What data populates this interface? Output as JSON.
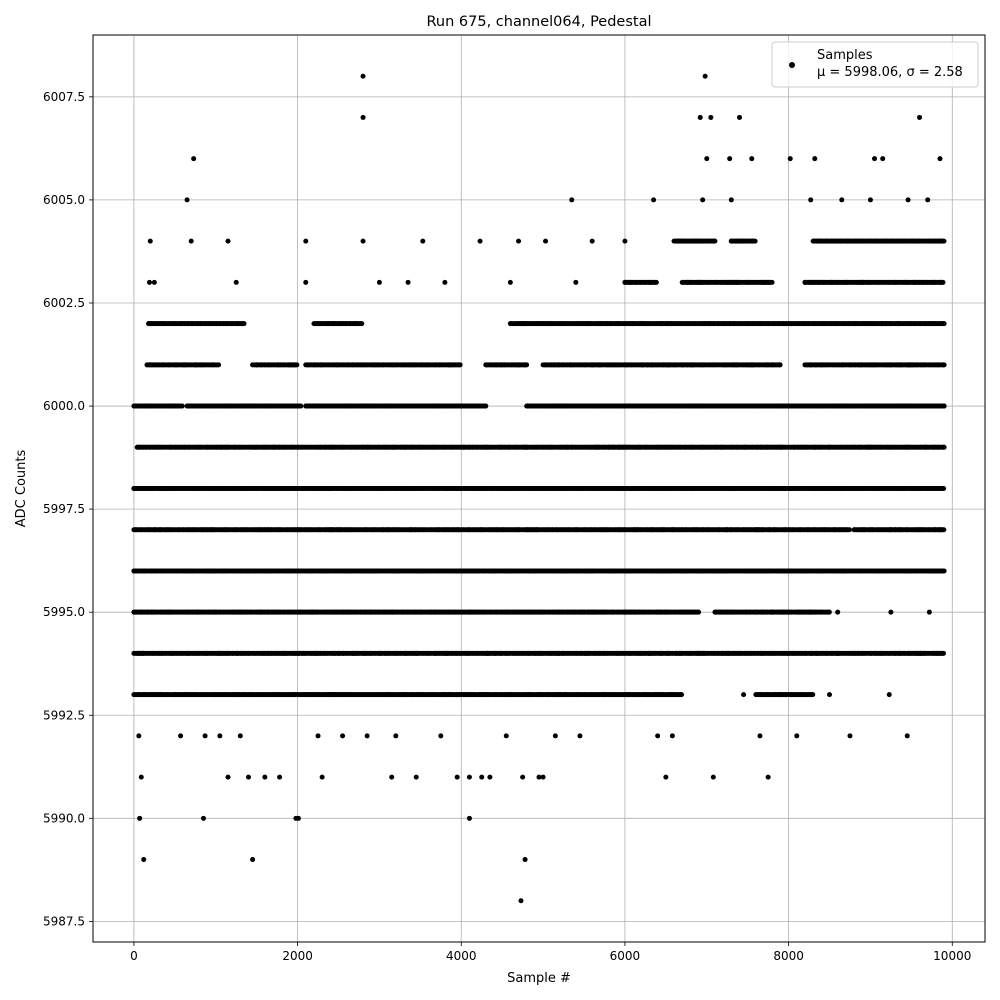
{
  "chart_data": {
    "type": "scatter",
    "title": "Run 675, channel064, Pedestal",
    "xlabel": "Sample #",
    "ylabel": "ADC Counts",
    "xlim": [
      -500,
      10400
    ],
    "ylim": [
      5987.0,
      6009.0
    ],
    "x_ticks": [
      0,
      2000,
      4000,
      6000,
      8000,
      10000
    ],
    "x_tick_labels": [
      "0",
      "2000",
      "4000",
      "6000",
      "8000",
      "10000"
    ],
    "y_ticks": [
      5987.5,
      5990.0,
      5992.5,
      5995.0,
      5997.5,
      6000.0,
      6002.5,
      6005.0,
      6007.5
    ],
    "y_tick_labels": [
      "5987.5",
      "5990.0",
      "5992.5",
      "5995.0",
      "5997.5",
      "6000.0",
      "6002.5",
      "6005.0",
      "6007.5"
    ],
    "grid": true,
    "legend_position": "top-right",
    "series": [
      {
        "name": "Samples",
        "marker": "circle",
        "color": "#000000",
        "points": [
          [
            0,
            5998
          ],
          [
            20,
            5997
          ],
          [
            40,
            5996
          ],
          [
            60,
            5999
          ],
          [
            80,
            5995
          ],
          [
            100,
            5994
          ],
          [
            120,
            5993
          ],
          [
            60,
            5992
          ],
          [
            90,
            5991
          ],
          [
            70,
            5990
          ],
          [
            120,
            5989
          ],
          [
            140,
            6000
          ],
          [
            160,
            6001
          ],
          [
            180,
            6002
          ],
          [
            190,
            6003
          ],
          [
            200,
            6004
          ],
          [
            650,
            6005
          ],
          [
            730,
            6006
          ],
          [
            2800,
            6008
          ],
          [
            2800,
            6007
          ],
          [
            2800,
            6004
          ],
          [
            3350,
            6003
          ],
          [
            3530,
            6004
          ],
          [
            4230,
            6004
          ],
          [
            4700,
            6004
          ],
          [
            5030,
            6004
          ],
          [
            5350,
            6005
          ],
          [
            6350,
            6005
          ],
          [
            6980,
            6008
          ],
          [
            6920,
            6007
          ],
          [
            7050,
            6007
          ],
          [
            7400,
            6007
          ],
          [
            7000,
            6006
          ],
          [
            7280,
            6006
          ],
          [
            7550,
            6006
          ],
          [
            8020,
            6006
          ],
          [
            8320,
            6006
          ],
          [
            9050,
            6006
          ],
          [
            9150,
            6006
          ],
          [
            9850,
            6006
          ],
          [
            9600,
            6007
          ],
          [
            8270,
            6005
          ],
          [
            9460,
            6005
          ],
          [
            850,
            5990
          ],
          [
            1450,
            5989
          ],
          [
            1980,
            5990
          ],
          [
            2010,
            5990
          ],
          [
            4100,
            5990
          ],
          [
            4780,
            5989
          ],
          [
            4730,
            5988
          ],
          [
            1150,
            5991
          ],
          [
            1400,
            5991
          ],
          [
            1600,
            5991
          ],
          [
            1780,
            5991
          ],
          [
            2300,
            5991
          ],
          [
            3150,
            5991
          ],
          [
            3450,
            5991
          ],
          [
            3950,
            5991
          ],
          [
            4100,
            5991
          ],
          [
            4250,
            5991
          ],
          [
            4350,
            5991
          ],
          [
            4750,
            5991
          ],
          [
            4950,
            5991
          ],
          [
            5000,
            5991
          ],
          [
            6500,
            5991
          ],
          [
            7080,
            5991
          ],
          [
            7750,
            5991
          ],
          [
            570,
            5992
          ],
          [
            870,
            5992
          ],
          [
            1050,
            5992
          ],
          [
            1300,
            5992
          ],
          [
            2250,
            5992
          ],
          [
            2550,
            5992
          ],
          [
            2850,
            5992
          ],
          [
            3200,
            5992
          ],
          [
            3750,
            5992
          ],
          [
            4550,
            5992
          ],
          [
            5150,
            5992
          ],
          [
            5450,
            5992
          ],
          [
            6400,
            5992
          ],
          [
            6580,
            5992
          ],
          [
            7650,
            5992
          ],
          [
            8100,
            5992
          ],
          [
            8750,
            5992
          ],
          [
            9450,
            5992
          ],
          [
            3100,
            5993
          ],
          [
            4600,
            5993
          ],
          [
            6550,
            5993
          ],
          [
            7450,
            5993
          ],
          [
            8500,
            5993
          ],
          [
            9230,
            5993
          ],
          [
            2500,
            5994
          ],
          [
            5200,
            5994
          ],
          [
            6300,
            5994
          ],
          [
            7200,
            5994
          ],
          [
            8450,
            5994
          ],
          [
            9000,
            5994
          ],
          [
            9870,
            5994
          ],
          [
            5500,
            5995
          ],
          [
            6900,
            5995
          ],
          [
            8600,
            5995
          ],
          [
            9250,
            5995
          ],
          [
            9720,
            5995
          ],
          [
            4400,
            5996
          ],
          [
            8550,
            5996
          ],
          [
            9100,
            5996
          ],
          [
            9500,
            5996
          ],
          [
            9900,
            5996
          ],
          [
            3700,
            5997
          ],
          [
            7600,
            5997
          ],
          [
            8900,
            5997
          ],
          [
            9850,
            5997
          ],
          [
            3400,
            5999
          ],
          [
            5800,
            5999
          ],
          [
            8500,
            5999
          ],
          [
            9900,
            5999
          ],
          [
            5200,
            6000
          ],
          [
            7400,
            6000
          ],
          [
            9900,
            6000
          ],
          [
            1500,
            6001
          ],
          [
            6700,
            6001
          ],
          [
            9900,
            6001
          ],
          [
            2700,
            6002
          ],
          [
            6200,
            6002
          ],
          [
            9900,
            6002
          ],
          [
            250,
            6003
          ],
          [
            1250,
            6003
          ],
          [
            2100,
            6003
          ],
          [
            3000,
            6003
          ],
          [
            3800,
            6003
          ],
          [
            4600,
            6003
          ],
          [
            5400,
            6003
          ],
          [
            6000,
            6003
          ],
          [
            7500,
            6003
          ],
          [
            8200,
            6003
          ],
          [
            8900,
            6003
          ],
          [
            9600,
            6003
          ],
          [
            9870,
            6003
          ],
          [
            700,
            6004
          ],
          [
            1150,
            6004
          ],
          [
            2100,
            6004
          ],
          [
            5600,
            6004
          ],
          [
            6000,
            6004
          ],
          [
            6650,
            6004
          ],
          [
            7300,
            6004
          ],
          [
            8350,
            6004
          ],
          [
            8650,
            6004
          ],
          [
            9200,
            6004
          ],
          [
            9850,
            6004
          ],
          [
            6950,
            6005
          ],
          [
            7300,
            6005
          ],
          [
            8650,
            6005
          ],
          [
            9000,
            6005
          ],
          [
            9700,
            6005
          ]
        ]
      }
    ],
    "density_bands": [
      {
        "y": 6001,
        "ranges": [
          [
            170,
            1050
          ],
          [
            1450,
            2000
          ],
          [
            2100,
            4000
          ],
          [
            4300,
            4800
          ],
          [
            5000,
            6500
          ],
          [
            6500,
            7900
          ],
          [
            8200,
            9900
          ]
        ]
      },
      {
        "y": 6000,
        "ranges": [
          [
            0,
            600
          ],
          [
            650,
            2050
          ],
          [
            2100,
            4300
          ],
          [
            4800,
            9900
          ]
        ]
      },
      {
        "y": 5999,
        "ranges": [
          [
            40,
            9900
          ]
        ]
      },
      {
        "y": 5998,
        "ranges": [
          [
            0,
            9900
          ]
        ]
      },
      {
        "y": 5997,
        "ranges": [
          [
            0,
            8750
          ],
          [
            8800,
            9900
          ]
        ]
      },
      {
        "y": 5996,
        "ranges": [
          [
            0,
            9900
          ]
        ]
      },
      {
        "y": 5995,
        "ranges": [
          [
            0,
            6900
          ],
          [
            7100,
            8500
          ]
        ]
      },
      {
        "y": 5994,
        "ranges": [
          [
            0,
            9900
          ]
        ]
      },
      {
        "y": 5993,
        "ranges": [
          [
            0,
            6700
          ],
          [
            7600,
            8300
          ]
        ]
      },
      {
        "y": 6002,
        "ranges": [
          [
            180,
            1350
          ],
          [
            2200,
            2800
          ],
          [
            4600,
            9900
          ]
        ]
      },
      {
        "y": 6003,
        "ranges": [
          [
            6000,
            6400
          ],
          [
            6700,
            7800
          ],
          [
            8200,
            9900
          ]
        ]
      },
      {
        "y": 6004,
        "ranges": [
          [
            6600,
            7100
          ],
          [
            7300,
            7600
          ],
          [
            8300,
            9900
          ]
        ]
      }
    ],
    "annotations": {
      "legend_label": "Samples",
      "legend_stats": "μ = 5998.06, σ = 2.58"
    }
  }
}
